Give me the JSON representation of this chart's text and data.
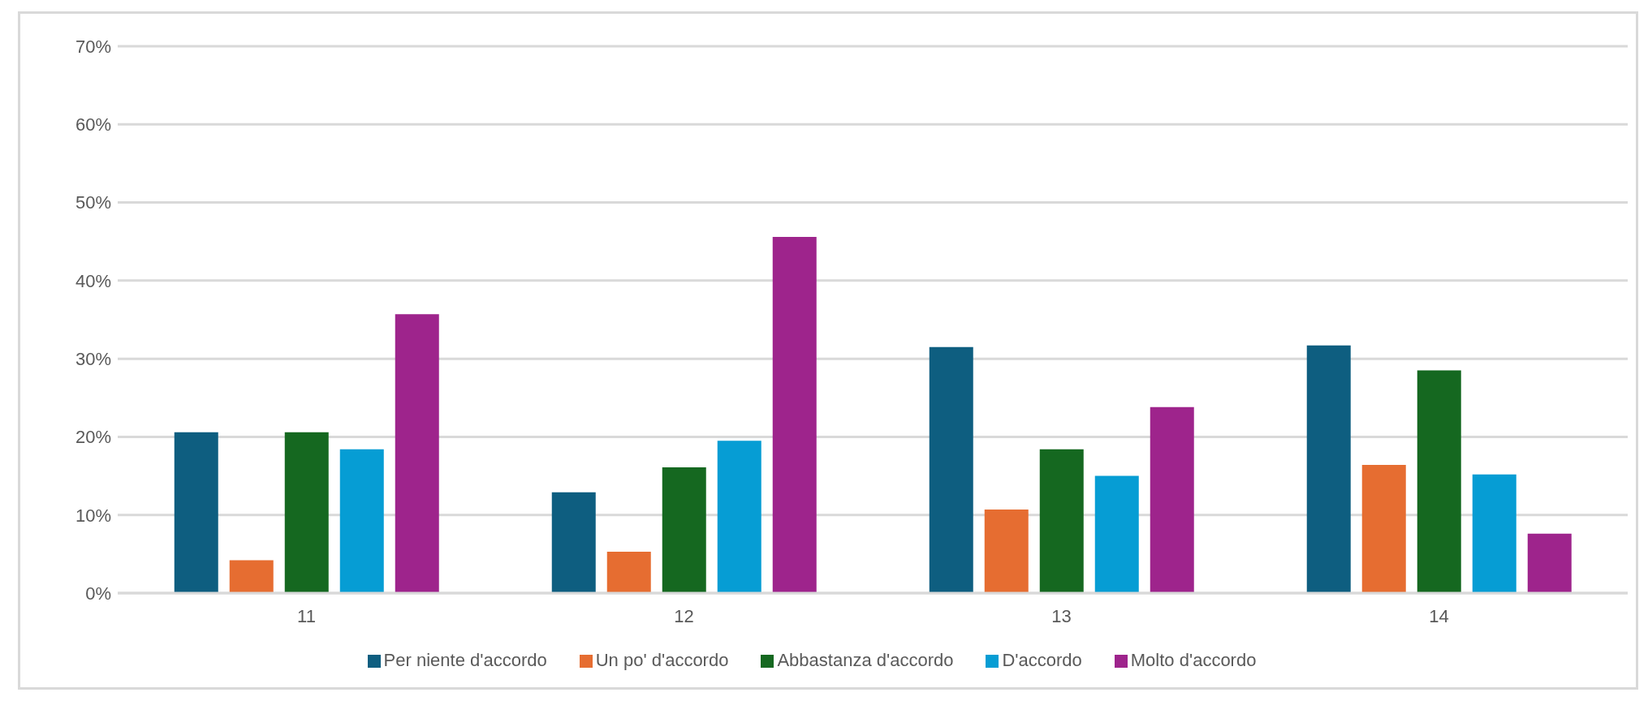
{
  "chart_data": {
    "type": "bar",
    "categories": [
      "11",
      "12",
      "13",
      "14"
    ],
    "series": [
      {
        "name": "Per niente d'accordo",
        "color": "#0e5e80",
        "values": [
          20.6,
          12.9,
          31.5,
          31.7
        ]
      },
      {
        "name": "Un po' d'accordo",
        "color": "#e66d31",
        "values": [
          4.2,
          5.3,
          10.7,
          16.4
        ]
      },
      {
        "name": "Abbastanza d'accordo",
        "color": "#156820",
        "values": [
          20.6,
          16.1,
          18.4,
          28.5
        ]
      },
      {
        "name": "D'accordo",
        "color": "#069dd4",
        "values": [
          18.4,
          19.5,
          15.0,
          15.2
        ]
      },
      {
        "name": "Molto d'accordo",
        "color": "#9e248c",
        "values": [
          35.7,
          45.6,
          23.8,
          7.6
        ]
      }
    ],
    "ylim": [
      0,
      70
    ],
    "yticks": [
      {
        "value": 0,
        "label": "0%"
      },
      {
        "value": 10,
        "label": "10%"
      },
      {
        "value": 20,
        "label": "20%"
      },
      {
        "value": 30,
        "label": "30%"
      },
      {
        "value": 40,
        "label": "40%"
      },
      {
        "value": 50,
        "label": "50%"
      },
      {
        "value": 60,
        "label": "60%"
      },
      {
        "value": 70,
        "label": "70%"
      }
    ],
    "grid": "y",
    "legend": "bottom"
  }
}
